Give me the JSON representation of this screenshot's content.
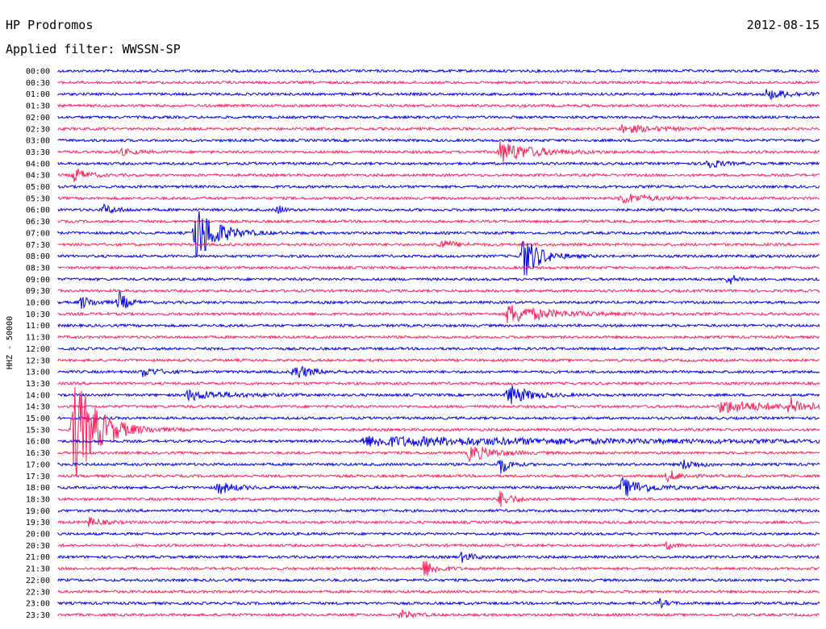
{
  "header": {
    "station": "HP Prodromos",
    "date": "2012-08-15",
    "filter": "Applied filter: WWSSN-SP"
  },
  "chart_data": {
    "type": "line",
    "title": "HP Prodromos",
    "subtitle": "Applied filter: WWSSN-SP",
    "ylabel": "HHZ - 50000",
    "row_labels": [
      "00:00",
      "00:30",
      "01:00",
      "01:30",
      "02:00",
      "02:30",
      "03:00",
      "03:30",
      "04:00",
      "04:30",
      "05:00",
      "05:30",
      "06:00",
      "06:30",
      "07:00",
      "07:30",
      "08:00",
      "08:30",
      "09:00",
      "09:30",
      "10:00",
      "10:30",
      "11:00",
      "11:30",
      "12:00",
      "12:30",
      "13:00",
      "13:30",
      "14:00",
      "14:30",
      "15:00",
      "15:30",
      "16:00",
      "16:30",
      "17:00",
      "17:30",
      "18:00",
      "18:30",
      "19:00",
      "19:30",
      "20:00",
      "20:30",
      "21:00",
      "21:30",
      "22:00",
      "22:30",
      "23:00",
      "23:30"
    ],
    "trace_colors": [
      "#0000ee",
      "#ff1f5a"
    ],
    "grid": false,
    "events": [
      {
        "row": 2,
        "pos": 0.93,
        "amp": 6,
        "width": 0.03
      },
      {
        "row": 5,
        "pos": 0.74,
        "amp": 5,
        "width": 0.04
      },
      {
        "row": 7,
        "pos": 0.08,
        "amp": 4,
        "width": 0.02
      },
      {
        "row": 7,
        "pos": 0.58,
        "amp": 14,
        "width": 0.04
      },
      {
        "row": 8,
        "pos": 0.85,
        "amp": 8,
        "width": 0.015
      },
      {
        "row": 9,
        "pos": 0.02,
        "amp": 10,
        "width": 0.015
      },
      {
        "row": 11,
        "pos": 0.74,
        "amp": 7,
        "width": 0.03
      },
      {
        "row": 12,
        "pos": 0.06,
        "amp": 6,
        "width": 0.015
      },
      {
        "row": 12,
        "pos": 0.29,
        "amp": 8,
        "width": 0.005
      },
      {
        "row": 14,
        "pos": 0.18,
        "amp": 40,
        "width": 0.025
      },
      {
        "row": 15,
        "pos": 0.5,
        "amp": 6,
        "width": 0.02
      },
      {
        "row": 16,
        "pos": 0.61,
        "amp": 30,
        "width": 0.02
      },
      {
        "row": 18,
        "pos": 0.88,
        "amp": 8,
        "width": 0.01
      },
      {
        "row": 20,
        "pos": 0.03,
        "amp": 8,
        "width": 0.015
      },
      {
        "row": 20,
        "pos": 0.08,
        "amp": 14,
        "width": 0.01
      },
      {
        "row": 21,
        "pos": 0.59,
        "amp": 12,
        "width": 0.05
      },
      {
        "row": 26,
        "pos": 0.11,
        "amp": 6,
        "width": 0.02
      },
      {
        "row": 26,
        "pos": 0.31,
        "amp": 10,
        "width": 0.02
      },
      {
        "row": 28,
        "pos": 0.17,
        "amp": 6,
        "width": 0.05
      },
      {
        "row": 28,
        "pos": 0.59,
        "amp": 14,
        "width": 0.025
      },
      {
        "row": 29,
        "pos": 0.87,
        "amp": 8,
        "width": 0.06
      },
      {
        "row": 29,
        "pos": 0.96,
        "amp": 10,
        "width": 0.02
      },
      {
        "row": 31,
        "pos": 0.02,
        "amp": 70,
        "width": 0.03
      },
      {
        "row": 32,
        "pos": 0.4,
        "amp": 6,
        "width": 0.3
      },
      {
        "row": 33,
        "pos": 0.54,
        "amp": 10,
        "width": 0.03
      },
      {
        "row": 34,
        "pos": 0.58,
        "amp": 14,
        "width": 0.01
      },
      {
        "row": 34,
        "pos": 0.82,
        "amp": 6,
        "width": 0.02
      },
      {
        "row": 35,
        "pos": 0.8,
        "amp": 8,
        "width": 0.015
      },
      {
        "row": 36,
        "pos": 0.21,
        "amp": 8,
        "width": 0.02
      },
      {
        "row": 36,
        "pos": 0.74,
        "amp": 12,
        "width": 0.03
      },
      {
        "row": 37,
        "pos": 0.58,
        "amp": 10,
        "width": 0.015
      },
      {
        "row": 39,
        "pos": 0.04,
        "amp": 6,
        "width": 0.015
      },
      {
        "row": 41,
        "pos": 0.8,
        "amp": 5,
        "width": 0.01
      },
      {
        "row": 42,
        "pos": 0.53,
        "amp": 6,
        "width": 0.015
      },
      {
        "row": 43,
        "pos": 0.48,
        "amp": 12,
        "width": 0.015
      },
      {
        "row": 46,
        "pos": 0.79,
        "amp": 5,
        "width": 0.01
      },
      {
        "row": 47,
        "pos": 0.45,
        "amp": 6,
        "width": 0.015
      }
    ]
  }
}
